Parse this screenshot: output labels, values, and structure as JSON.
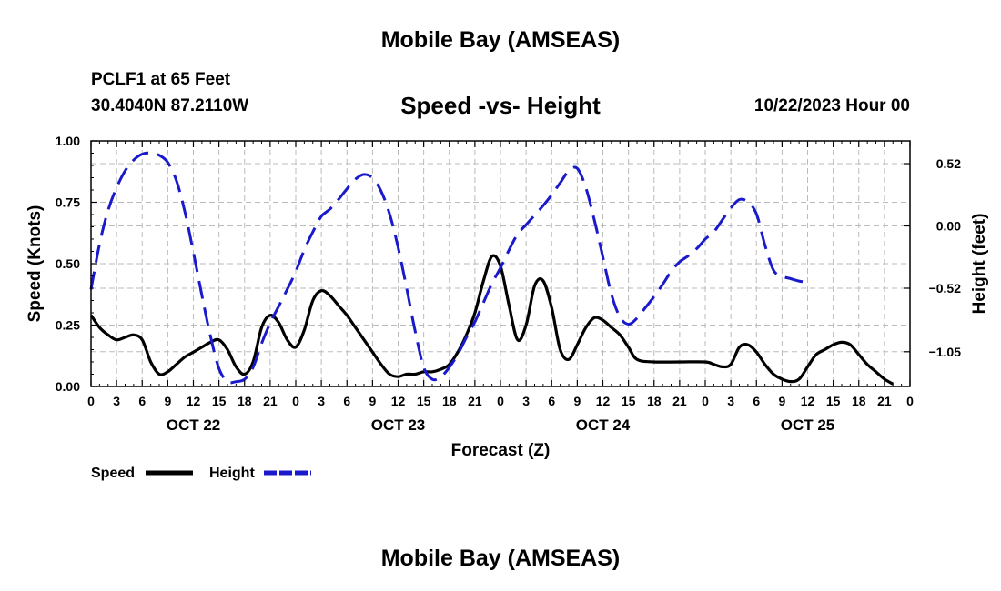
{
  "page_title": "Mobile Bay (AMSEAS)",
  "footer_title": "Mobile Bay (AMSEAS)",
  "station": {
    "name": "PCLF1 at 65 Feet",
    "coords": "30.4040N  87.2110W",
    "datetime": "10/22/2023 Hour 00"
  },
  "colors": {
    "speed": "#000000",
    "height": "#1a1acc",
    "grid": "#bbbbbb"
  },
  "chart_data": {
    "type": "line",
    "title": "Speed -vs- Height",
    "xlabel": "Forecast (Z)",
    "ylabel_left": "Speed (Knots)",
    "ylabel_right": "Height (feet)",
    "x_range_hours": [
      0,
      96
    ],
    "x_tick_step_hours": 3,
    "x_tick_labels": [
      "0",
      "3",
      "6",
      "9",
      "12",
      "15",
      "18",
      "21",
      "0",
      "3",
      "6",
      "9",
      "12",
      "15",
      "18",
      "21",
      "0",
      "3",
      "6",
      "9",
      "12",
      "15",
      "18",
      "21",
      "0",
      "3",
      "6",
      "9",
      "12",
      "15",
      "18",
      "21",
      "0"
    ],
    "day_labels": [
      {
        "hour": 12,
        "label": "OCT 22"
      },
      {
        "hour": 36,
        "label": "OCT 23"
      },
      {
        "hour": 60,
        "label": "OCT 24"
      },
      {
        "hour": 84,
        "label": "OCT 25"
      }
    ],
    "ylim_left": [
      0,
      1
    ],
    "yticks_left": [
      0,
      0.25,
      0.5,
      0.75,
      1.0
    ],
    "yticks_left_labels": [
      "0.00",
      "0.25",
      "0.50",
      "0.75",
      "1.00"
    ],
    "ylim_right": [
      -1.34,
      0.71
    ],
    "yticks_right": [
      -1.05,
      -0.52,
      0.0,
      0.52
    ],
    "yticks_right_labels": [
      "−1.05",
      "−0.52",
      "0.00",
      "0.52"
    ],
    "legend": [
      {
        "name": "Speed",
        "style": "solid"
      },
      {
        "name": "Height",
        "style": "dashed"
      }
    ],
    "series": [
      {
        "name": "Speed",
        "axis": "left",
        "style": "solid",
        "points": [
          [
            0,
            0.29
          ],
          [
            1,
            0.24
          ],
          [
            2,
            0.21
          ],
          [
            3,
            0.19
          ],
          [
            4,
            0.2
          ],
          [
            5,
            0.21
          ],
          [
            6,
            0.19
          ],
          [
            7,
            0.1
          ],
          [
            8,
            0.05
          ],
          [
            9,
            0.06
          ],
          [
            10,
            0.09
          ],
          [
            11,
            0.12
          ],
          [
            12,
            0.14
          ],
          [
            13,
            0.16
          ],
          [
            14,
            0.18
          ],
          [
            15,
            0.19
          ],
          [
            16,
            0.15
          ],
          [
            17,
            0.08
          ],
          [
            18,
            0.05
          ],
          [
            19,
            0.1
          ],
          [
            20,
            0.24
          ],
          [
            21,
            0.29
          ],
          [
            22,
            0.26
          ],
          [
            23,
            0.19
          ],
          [
            24,
            0.16
          ],
          [
            25,
            0.23
          ],
          [
            26,
            0.35
          ],
          [
            27,
            0.39
          ],
          [
            28,
            0.37
          ],
          [
            29,
            0.33
          ],
          [
            30,
            0.29
          ],
          [
            31,
            0.24
          ],
          [
            32,
            0.19
          ],
          [
            33,
            0.14
          ],
          [
            34,
            0.09
          ],
          [
            35,
            0.05
          ],
          [
            36,
            0.04
          ],
          [
            37,
            0.05
          ],
          [
            38,
            0.05
          ],
          [
            39,
            0.06
          ],
          [
            40,
            0.06
          ],
          [
            41,
            0.07
          ],
          [
            42,
            0.09
          ],
          [
            43,
            0.14
          ],
          [
            44,
            0.21
          ],
          [
            45,
            0.3
          ],
          [
            46,
            0.43
          ],
          [
            47,
            0.53
          ],
          [
            48,
            0.49
          ],
          [
            49,
            0.33
          ],
          [
            50,
            0.19
          ],
          [
            51,
            0.25
          ],
          [
            52,
            0.41
          ],
          [
            53,
            0.43
          ],
          [
            54,
            0.32
          ],
          [
            55,
            0.15
          ],
          [
            56,
            0.11
          ],
          [
            57,
            0.17
          ],
          [
            58,
            0.24
          ],
          [
            59,
            0.28
          ],
          [
            60,
            0.27
          ],
          [
            61,
            0.24
          ],
          [
            62,
            0.21
          ],
          [
            63,
            0.16
          ],
          [
            64,
            0.11
          ],
          [
            66,
            0.1
          ],
          [
            69,
            0.1
          ],
          [
            72,
            0.1
          ],
          [
            73,
            0.09
          ],
          [
            74,
            0.08
          ],
          [
            75,
            0.09
          ],
          [
            76,
            0.16
          ],
          [
            77,
            0.17
          ],
          [
            78,
            0.14
          ],
          [
            79,
            0.09
          ],
          [
            80,
            0.05
          ],
          [
            81,
            0.03
          ],
          [
            82,
            0.02
          ],
          [
            83,
            0.03
          ],
          [
            84,
            0.08
          ],
          [
            85,
            0.13
          ],
          [
            86,
            0.15
          ],
          [
            87,
            0.17
          ],
          [
            88,
            0.18
          ],
          [
            89,
            0.17
          ],
          [
            90,
            0.13
          ],
          [
            91,
            0.09
          ],
          [
            92,
            0.06
          ],
          [
            93,
            0.03
          ],
          [
            94,
            0.01
          ]
        ]
      },
      {
        "name": "Height",
        "axis": "right",
        "style": "dashed",
        "points": [
          [
            0,
            -0.53
          ],
          [
            1,
            -0.15
          ],
          [
            2,
            0.13
          ],
          [
            3,
            0.32
          ],
          [
            4,
            0.46
          ],
          [
            5,
            0.55
          ],
          [
            6,
            0.6
          ],
          [
            7,
            0.61
          ],
          [
            8,
            0.59
          ],
          [
            9,
            0.53
          ],
          [
            10,
            0.38
          ],
          [
            11,
            0.12
          ],
          [
            12,
            -0.22
          ],
          [
            13,
            -0.58
          ],
          [
            14,
            -0.92
          ],
          [
            15,
            -1.19
          ],
          [
            16,
            -1.3
          ],
          [
            17,
            -1.3
          ],
          [
            18,
            -1.28
          ],
          [
            19,
            -1.18
          ],
          [
            20,
            -0.98
          ],
          [
            21,
            -0.81
          ],
          [
            22,
            -0.67
          ],
          [
            23,
            -0.53
          ],
          [
            24,
            -0.38
          ],
          [
            25,
            -0.2
          ],
          [
            26,
            -0.05
          ],
          [
            27,
            0.08
          ],
          [
            28,
            0.14
          ],
          [
            29,
            0.22
          ],
          [
            30,
            0.31
          ],
          [
            31,
            0.39
          ],
          [
            32,
            0.43
          ],
          [
            33,
            0.4
          ],
          [
            34,
            0.29
          ],
          [
            35,
            0.1
          ],
          [
            36,
            -0.18
          ],
          [
            37,
            -0.52
          ],
          [
            38,
            -0.88
          ],
          [
            39,
            -1.18
          ],
          [
            40,
            -1.28
          ],
          [
            41,
            -1.26
          ],
          [
            42,
            -1.18
          ],
          [
            43,
            -1.07
          ],
          [
            44,
            -0.93
          ],
          [
            45,
            -0.8
          ],
          [
            46,
            -0.64
          ],
          [
            47,
            -0.48
          ],
          [
            48,
            -0.35
          ],
          [
            49,
            -0.2
          ],
          [
            50,
            -0.07
          ],
          [
            51,
            0.01
          ],
          [
            52,
            0.09
          ],
          [
            53,
            0.17
          ],
          [
            54,
            0.26
          ],
          [
            55,
            0.36
          ],
          [
            56,
            0.46
          ],
          [
            57,
            0.48
          ],
          [
            58,
            0.32
          ],
          [
            59,
            0.05
          ],
          [
            60,
            -0.26
          ],
          [
            61,
            -0.57
          ],
          [
            62,
            -0.76
          ],
          [
            63,
            -0.82
          ],
          [
            64,
            -0.77
          ],
          [
            65,
            -0.68
          ],
          [
            66,
            -0.59
          ],
          [
            67,
            -0.49
          ],
          [
            68,
            -0.38
          ],
          [
            69,
            -0.3
          ],
          [
            70,
            -0.25
          ],
          [
            71,
            -0.19
          ],
          [
            72,
            -0.11
          ],
          [
            73,
            -0.05
          ],
          [
            74,
            0.05
          ],
          [
            75,
            0.15
          ],
          [
            76,
            0.22
          ],
          [
            77,
            0.2
          ],
          [
            78,
            0.1
          ],
          [
            79,
            -0.16
          ],
          [
            80,
            -0.37
          ],
          [
            81,
            -0.42
          ],
          [
            82,
            -0.44
          ],
          [
            83,
            -0.46
          ],
          [
            84,
            -0.47
          ]
        ]
      }
    ]
  }
}
